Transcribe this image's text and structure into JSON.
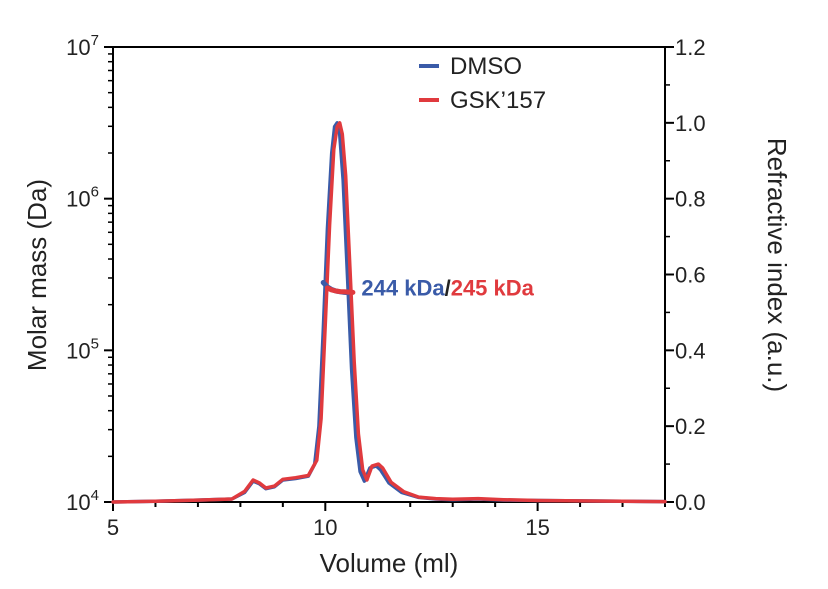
{
  "chart_data": {
    "type": "line",
    "xlabel": "Volume (ml)",
    "ylabel_left": "Molar mass (Da)",
    "ylabel_right": "Refractive index (a.u.)",
    "xlim": [
      5,
      18
    ],
    "ylim_left": [
      10000,
      10000000
    ],
    "ylim_right": [
      0,
      1.2
    ],
    "x_ticks": [
      5,
      10,
      15
    ],
    "x_tick_labels": [
      "5",
      "10",
      "15"
    ],
    "left_tick_labels": [
      {
        "base": "10",
        "exp": "4"
      },
      {
        "base": "10",
        "exp": "5"
      },
      {
        "base": "10",
        "exp": "6"
      },
      {
        "base": "10",
        "exp": "7"
      }
    ],
    "left_ticks_log": [
      4,
      5,
      6,
      7
    ],
    "right_ticks": [
      0.0,
      0.2,
      0.4,
      0.6,
      0.8,
      1.0,
      1.2
    ],
    "right_tick_labels": [
      "0.0",
      "0.2",
      "0.4",
      "0.6",
      "0.8",
      "1.0",
      "1.2"
    ],
    "legend_position": "top-center",
    "series": [
      {
        "name": "DMSO",
        "color": "#3a5ba8",
        "axis": "right",
        "x": [
          5.0,
          6.0,
          7.0,
          7.8,
          8.1,
          8.3,
          8.45,
          8.6,
          8.8,
          9.0,
          9.3,
          9.6,
          9.75,
          9.85,
          9.95,
          10.05,
          10.15,
          10.22,
          10.28,
          10.34,
          10.42,
          10.52,
          10.62,
          10.72,
          10.82,
          10.92,
          11.05,
          11.2,
          11.3,
          11.5,
          11.8,
          12.2,
          12.6,
          13.0,
          13.6,
          14.2,
          15.0,
          16.0,
          17.0,
          18.0
        ],
        "values": [
          0.0,
          0.002,
          0.005,
          0.008,
          0.025,
          0.055,
          0.048,
          0.035,
          0.04,
          0.058,
          0.062,
          0.068,
          0.1,
          0.2,
          0.45,
          0.72,
          0.92,
          0.99,
          1.0,
          0.97,
          0.85,
          0.6,
          0.35,
          0.17,
          0.08,
          0.055,
          0.09,
          0.095,
          0.085,
          0.05,
          0.025,
          0.012,
          0.008,
          0.006,
          0.008,
          0.005,
          0.004,
          0.003,
          0.002,
          0.001
        ]
      },
      {
        "name": "GSK’157",
        "color": "#e03a3e",
        "axis": "right",
        "x": [
          5.0,
          6.0,
          7.0,
          7.8,
          8.1,
          8.3,
          8.45,
          8.6,
          8.8,
          9.0,
          9.3,
          9.6,
          9.8,
          9.9,
          10.0,
          10.1,
          10.2,
          10.28,
          10.34,
          10.4,
          10.48,
          10.58,
          10.68,
          10.78,
          10.88,
          10.98,
          11.1,
          11.25,
          11.35,
          11.55,
          11.85,
          12.2,
          12.6,
          13.0,
          13.6,
          14.2,
          15.0,
          16.0,
          17.0,
          18.0
        ],
        "values": [
          0.0,
          0.002,
          0.005,
          0.008,
          0.028,
          0.058,
          0.05,
          0.037,
          0.042,
          0.06,
          0.064,
          0.07,
          0.11,
          0.22,
          0.47,
          0.73,
          0.93,
          0.99,
          1.0,
          0.97,
          0.86,
          0.62,
          0.37,
          0.18,
          0.085,
          0.058,
          0.095,
          0.1,
          0.09,
          0.052,
          0.027,
          0.013,
          0.009,
          0.007,
          0.009,
          0.006,
          0.004,
          0.003,
          0.002,
          0.001
        ]
      }
    ],
    "mass_series": [
      {
        "name": "DMSO",
        "color": "#3a5ba8",
        "axis": "left",
        "x": [
          9.95,
          10.05,
          10.15,
          10.25,
          10.35,
          10.45,
          10.55
        ],
        "values": [
          280000,
          262000,
          252000,
          246000,
          243000,
          241000,
          240000
        ]
      },
      {
        "name": "GSK’157",
        "color": "#e03a3e",
        "axis": "left",
        "x": [
          10.05,
          10.15,
          10.25,
          10.35,
          10.45,
          10.55,
          10.65
        ],
        "values": [
          258000,
          250000,
          246000,
          244000,
          243000,
          242000,
          241000
        ]
      }
    ],
    "annotation": {
      "part1": "244 kDa",
      "sep": "/",
      "part2": "245 kDa",
      "x": 10.85,
      "y_mass": 260000,
      "color1": "#3a5ba8",
      "color2": "#e03a3e",
      "sep_color": "#222222"
    }
  }
}
